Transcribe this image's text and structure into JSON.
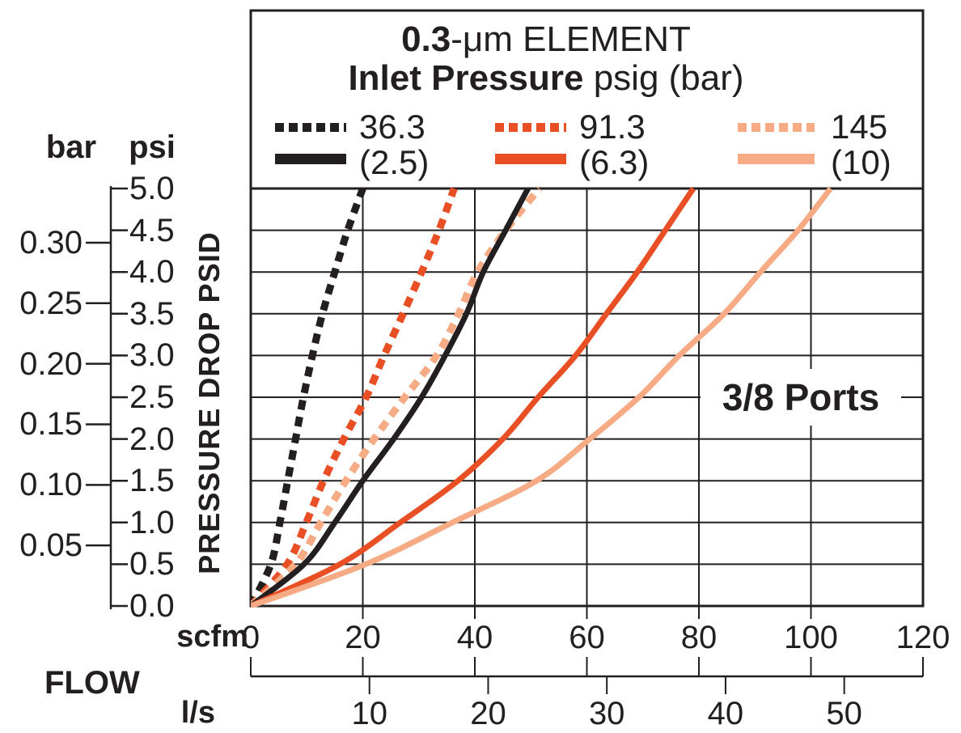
{
  "colors": {
    "black": "#231F20",
    "orange": "#E94F25",
    "salmon": "#F6AB85",
    "grid": "#231F20",
    "background": "#FFFFFF"
  },
  "legend": {
    "title_line1_bold": "0.3",
    "title_line1_rest": "-μm ELEMENT",
    "title_line2_bold": "Inlet Pressure",
    "title_line2_rest": " psig (bar)",
    "entries": [
      {
        "dashed_label": "36.3",
        "solid_label": "(2.5)",
        "color_key": "black"
      },
      {
        "dashed_label": "91.3",
        "solid_label": "(6.3)",
        "color_key": "orange"
      },
      {
        "dashed_label": "145",
        "solid_label": "(10)",
        "color_key": "salmon"
      }
    ]
  },
  "annotation": "3/8 Ports",
  "axes": {
    "y_left_outer_header": "bar",
    "y_left_inner_header": "psi",
    "y_axis_title": "PRESSURE DROP PSID",
    "psi_ticks": [
      "0.0",
      "0.5",
      "1.0",
      "1.5",
      "2.0",
      "2.5",
      "3.0",
      "3.5",
      "4.0",
      "4.5",
      "5.0"
    ],
    "bar_ticks": [
      "0.05",
      "0.10",
      "0.15",
      "0.20",
      "0.25",
      "0.30"
    ],
    "scfm_word": "scfm",
    "scfm_ticks": [
      "0",
      "20",
      "40",
      "60",
      "80",
      "100",
      "120"
    ],
    "ls_word": "l/s",
    "ls_ticks": [
      "10",
      "20",
      "30",
      "40",
      "50"
    ],
    "flow_label": "FLOW"
  },
  "chart_data": {
    "type": "line",
    "title": "0.3-μm ELEMENT  Inlet Pressure psig (bar)",
    "xlabel": "FLOW",
    "x_units": [
      "scfm",
      "l/s"
    ],
    "ylabel": "PRESSURE DROP PSID",
    "y_units": [
      "psi",
      "bar"
    ],
    "x_range_scfm": [
      0,
      120
    ],
    "y_range_psi": [
      0,
      5
    ],
    "grid": true,
    "legend_position": "top",
    "annotation": "3/8 Ports",
    "series": [
      {
        "name": "36.3 psig",
        "legend": "36.3",
        "style": "dashed",
        "color_key": "black",
        "points_scfm_psid": [
          [
            0,
            0
          ],
          [
            3.6,
            0.5
          ],
          [
            5.2,
            1.0
          ],
          [
            6.6,
            1.5
          ],
          [
            8.0,
            2.0
          ],
          [
            9.4,
            2.5
          ],
          [
            11.0,
            3.0
          ],
          [
            12.8,
            3.5
          ],
          [
            15.0,
            4.0
          ],
          [
            17.3,
            4.5
          ],
          [
            20.0,
            5.0
          ]
        ]
      },
      {
        "name": "91.3 psig",
        "legend": "91.3",
        "style": "dashed",
        "color_key": "orange",
        "points_scfm_psid": [
          [
            0,
            0
          ],
          [
            6.5,
            0.5
          ],
          [
            9.9,
            1.0
          ],
          [
            13.0,
            1.5
          ],
          [
            16.6,
            2.0
          ],
          [
            20.6,
            2.5
          ],
          [
            23.8,
            3.0
          ],
          [
            27.2,
            3.5
          ],
          [
            30.5,
            4.0
          ],
          [
            33.6,
            4.5
          ],
          [
            36.3,
            5.0
          ]
        ]
      },
      {
        "name": "145 psig",
        "legend": "145",
        "style": "dashed",
        "color_key": "salmon",
        "points_scfm_psid": [
          [
            0,
            0
          ],
          [
            8.0,
            0.5
          ],
          [
            12.5,
            1.0
          ],
          [
            17.0,
            1.5
          ],
          [
            22.0,
            2.0
          ],
          [
            27.5,
            2.5
          ],
          [
            33.2,
            3.0
          ],
          [
            37.1,
            3.5
          ],
          [
            40.5,
            4.0
          ],
          [
            45.5,
            4.5
          ],
          [
            51.5,
            5.0
          ]
        ]
      },
      {
        "name": "2.5 bar",
        "legend": "(2.5)",
        "style": "solid",
        "color_key": "black",
        "points_scfm_psid": [
          [
            0,
            0
          ],
          [
            9.5,
            0.5
          ],
          [
            15.0,
            1.0
          ],
          [
            20.0,
            1.5
          ],
          [
            25.5,
            2.0
          ],
          [
            30.5,
            2.5
          ],
          [
            34.7,
            3.0
          ],
          [
            38.5,
            3.5
          ],
          [
            41.5,
            4.0
          ],
          [
            45.5,
            4.5
          ],
          [
            49.5,
            5.0
          ]
        ]
      },
      {
        "name": "6.3 bar",
        "legend": "(6.3)",
        "style": "solid",
        "color_key": "orange",
        "points_scfm_psid": [
          [
            0,
            0
          ],
          [
            15.9,
            0.5
          ],
          [
            26.7,
            1.0
          ],
          [
            37.0,
            1.5
          ],
          [
            45.0,
            2.0
          ],
          [
            51.3,
            2.5
          ],
          [
            58.0,
            3.0
          ],
          [
            63.5,
            3.5
          ],
          [
            69.0,
            4.0
          ],
          [
            74.0,
            4.5
          ],
          [
            79.0,
            5.0
          ]
        ]
      },
      {
        "name": "10 bar",
        "legend": "(10)",
        "style": "solid",
        "color_key": "salmon",
        "points_scfm_psid": [
          [
            0,
            0
          ],
          [
            20.5,
            0.5
          ],
          [
            36.0,
            1.0
          ],
          [
            51.0,
            1.5
          ],
          [
            60.5,
            2.0
          ],
          [
            69.3,
            2.5
          ],
          [
            76.5,
            3.0
          ],
          [
            84.5,
            3.5
          ],
          [
            91.0,
            4.0
          ],
          [
            97.7,
            4.5
          ],
          [
            103.5,
            5.0
          ]
        ]
      }
    ]
  }
}
